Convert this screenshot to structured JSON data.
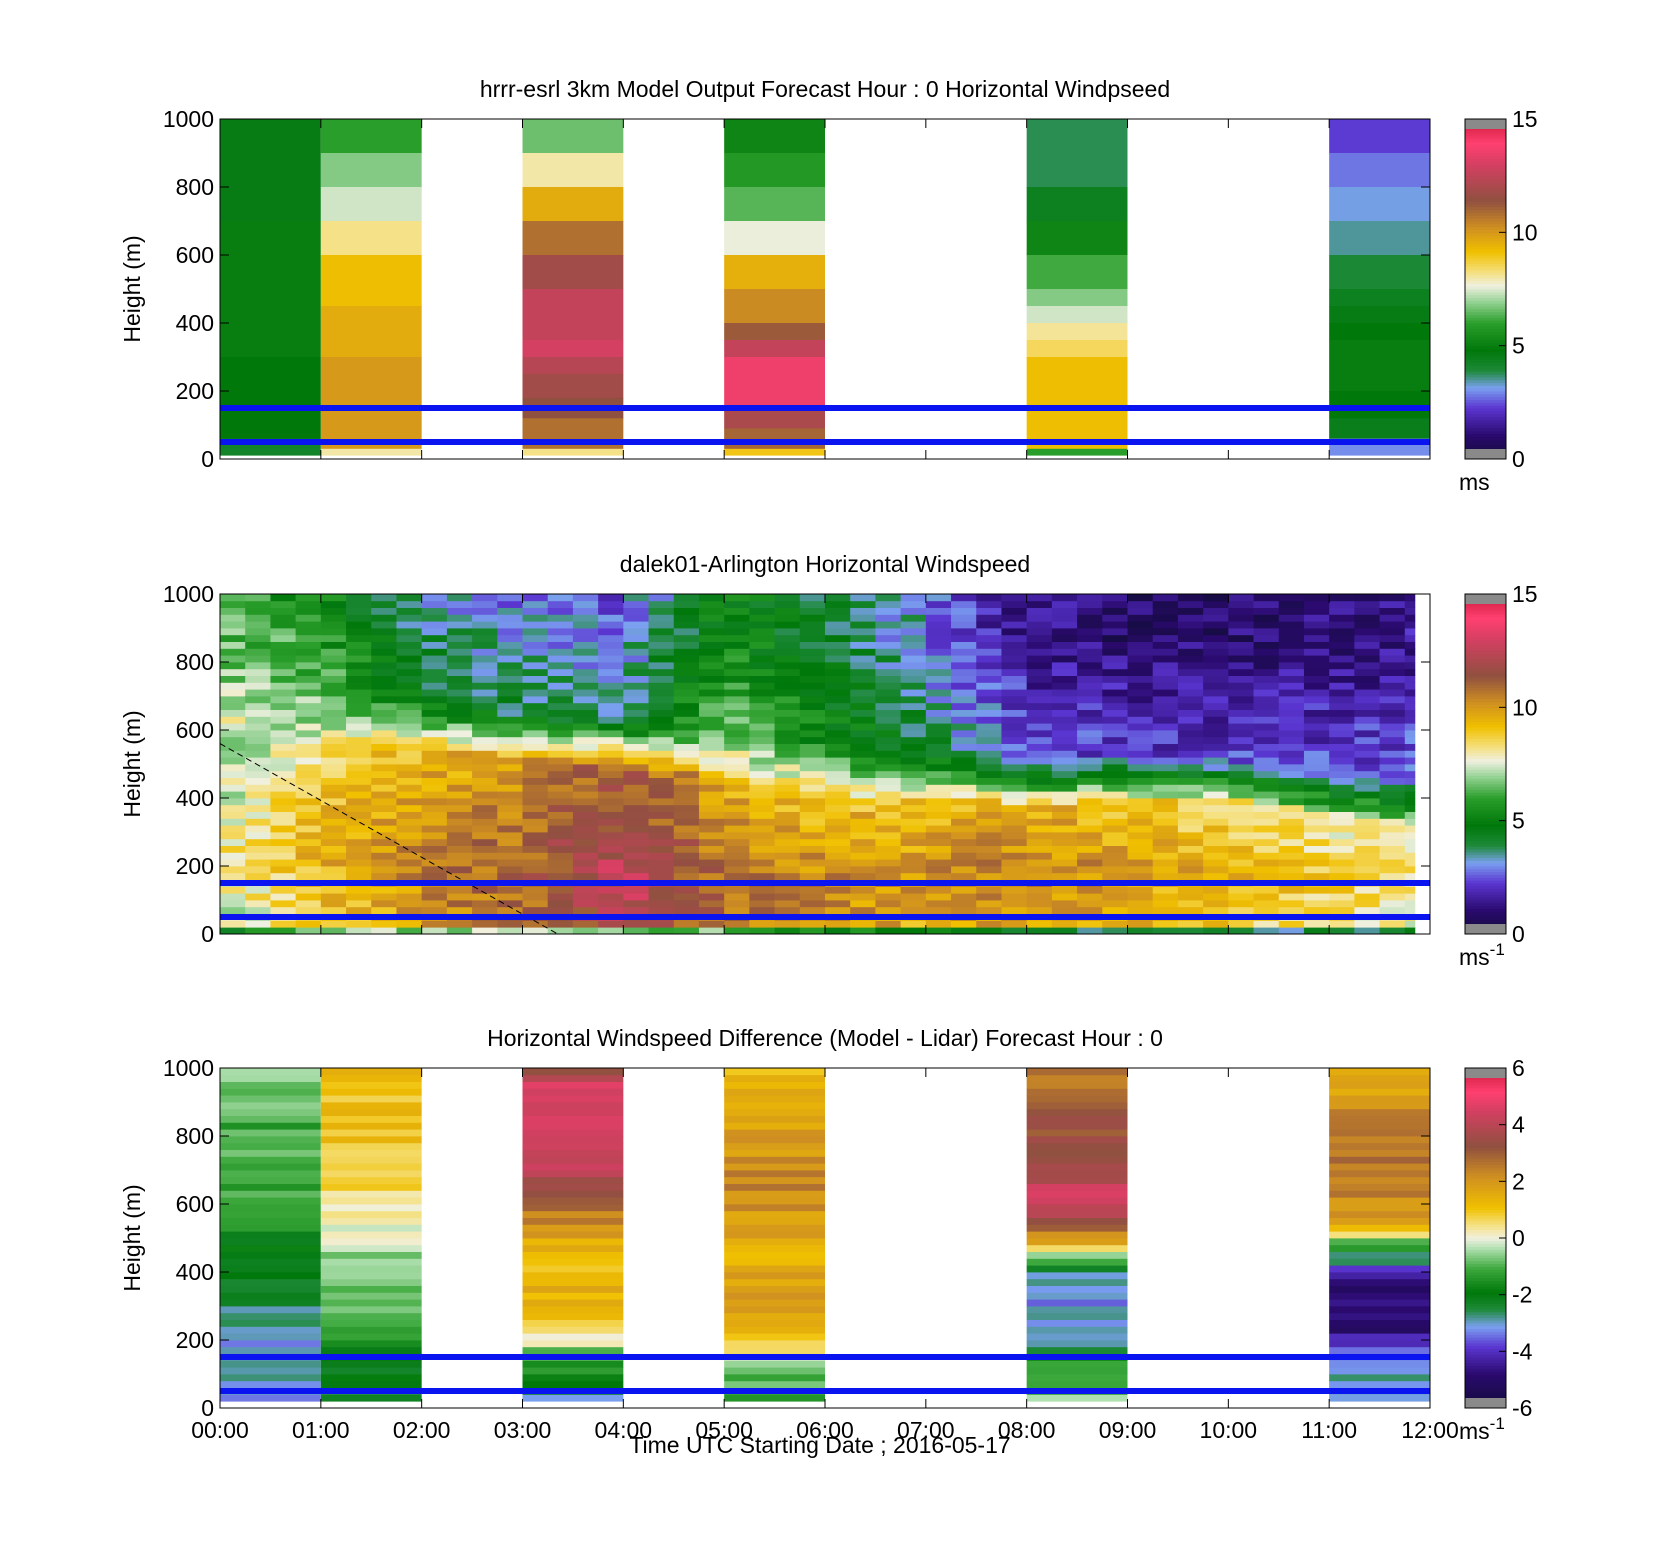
{
  "figure": {
    "x_tick_labels": [
      "00:00",
      "01:00",
      "02:00",
      "03:00",
      "04:00",
      "05:00",
      "06:00",
      "07:00",
      "08:00",
      "09:00",
      "10:00",
      "11:00",
      "12:00"
    ],
    "x_axis_label": "Time UTC  Starting Date ; 2016-05-17"
  },
  "chart_data": [
    {
      "type": "heatmap",
      "title": "hrrr-esrl 3km Model Output   Forecast Hour : 0 Horizontal Windpseed",
      "ylabel": "Height (m)",
      "ylim": [
        0,
        1000
      ],
      "y_ticks": [
        0,
        200,
        400,
        600,
        800,
        1000
      ],
      "xlim_hours": [
        0,
        12
      ],
      "colorbar": {
        "min": 0,
        "max": 15,
        "ticks": [
          0,
          5,
          10,
          15
        ],
        "unit": "ms",
        "unit_sup": ""
      },
      "reference_lines_m": [
        50,
        150
      ],
      "columns": [
        {
          "start_hour": 0,
          "end_hour": 1,
          "layers": [
            {
              "top_m": 1000,
              "value": 4.6
            },
            {
              "top_m": 700,
              "value": 5.0
            },
            {
              "top_m": 300,
              "value": 4.8
            },
            {
              "top_m": 60,
              "value": 4.2
            }
          ]
        },
        {
          "start_hour": 1,
          "end_hour": 2,
          "layers": [
            {
              "top_m": 1000,
              "value": 6.0
            },
            {
              "top_m": 900,
              "value": 6.8
            },
            {
              "top_m": 800,
              "value": 7.4
            },
            {
              "top_m": 700,
              "value": 8.2
            },
            {
              "top_m": 600,
              "value": 9.2
            },
            {
              "top_m": 450,
              "value": 9.6
            },
            {
              "top_m": 300,
              "value": 10.0
            },
            {
              "top_m": 30,
              "value": 8.0
            }
          ]
        },
        {
          "start_hour": 3,
          "end_hour": 4,
          "layers": [
            {
              "top_m": 1000,
              "value": 6.6
            },
            {
              "top_m": 900,
              "value": 8.0
            },
            {
              "top_m": 800,
              "value": 9.6
            },
            {
              "top_m": 700,
              "value": 10.8
            },
            {
              "top_m": 600,
              "value": 11.8
            },
            {
              "top_m": 500,
              "value": 12.6
            },
            {
              "top_m": 350,
              "value": 13.0
            },
            {
              "top_m": 300,
              "value": 12.3
            },
            {
              "top_m": 250,
              "value": 11.8
            },
            {
              "top_m": 180,
              "value": 11.4
            },
            {
              "top_m": 120,
              "value": 10.8
            },
            {
              "top_m": 30,
              "value": 8.2
            }
          ]
        },
        {
          "start_hour": 5,
          "end_hour": 6,
          "layers": [
            {
              "top_m": 1000,
              "value": 5.2
            },
            {
              "top_m": 900,
              "value": 5.8
            },
            {
              "top_m": 800,
              "value": 6.4
            },
            {
              "top_m": 700,
              "value": 7.6
            },
            {
              "top_m": 600,
              "value": 9.5
            },
            {
              "top_m": 500,
              "value": 10.3
            },
            {
              "top_m": 400,
              "value": 11.2
            },
            {
              "top_m": 350,
              "value": 12.6
            },
            {
              "top_m": 300,
              "value": 13.6
            },
            {
              "top_m": 150,
              "value": 12.0
            },
            {
              "top_m": 90,
              "value": 11.0
            },
            {
              "top_m": 30,
              "value": 9.0
            }
          ]
        },
        {
          "start_hour": 8,
          "end_hour": 9,
          "layers": [
            {
              "top_m": 1000,
              "value": 3.8
            },
            {
              "top_m": 800,
              "value": 4.4
            },
            {
              "top_m": 700,
              "value": 5.2
            },
            {
              "top_m": 600,
              "value": 6.2
            },
            {
              "top_m": 500,
              "value": 6.8
            },
            {
              "top_m": 450,
              "value": 7.4
            },
            {
              "top_m": 400,
              "value": 8.1
            },
            {
              "top_m": 350,
              "value": 8.5
            },
            {
              "top_m": 300,
              "value": 9.2
            },
            {
              "top_m": 30,
              "value": 6.0
            }
          ]
        },
        {
          "start_hour": 11,
          "end_hour": 12,
          "layers": [
            {
              "top_m": 1000,
              "value": 2.3
            },
            {
              "top_m": 900,
              "value": 2.8
            },
            {
              "top_m": 800,
              "value": 3.2
            },
            {
              "top_m": 700,
              "value": 3.5
            },
            {
              "top_m": 600,
              "value": 4.0
            },
            {
              "top_m": 500,
              "value": 4.4
            },
            {
              "top_m": 450,
              "value": 4.6
            },
            {
              "top_m": 400,
              "value": 4.8
            },
            {
              "top_m": 350,
              "value": 5.0
            },
            {
              "top_m": 200,
              "value": 4.8
            },
            {
              "top_m": 120,
              "value": 4.5
            },
            {
              "top_m": 60,
              "value": 3.0
            }
          ]
        }
      ]
    },
    {
      "type": "heatmap",
      "title": "dalek01-Arlington  Horizontal Windspeed",
      "ylabel": "Height (m)",
      "ylim": [
        0,
        1000
      ],
      "y_ticks": [
        0,
        200,
        400,
        600,
        800,
        1000
      ],
      "xlim_hours": [
        0,
        12
      ],
      "colorbar": {
        "min": 0,
        "max": 15,
        "ticks": [
          0,
          5,
          10,
          15
        ],
        "unit": "ms",
        "unit_sup": "-1"
      },
      "reference_lines_m": [
        50,
        150
      ],
      "data_end_hour": 11.85,
      "time_step_minutes": 15,
      "height_step_m": 20,
      "hourly_profiles": {
        "hours": [
          0,
          1,
          2,
          3,
          4,
          5,
          6,
          7,
          8,
          9,
          10,
          11,
          11.75
        ],
        "jet_top_m": [
          560,
          650,
          620,
          580,
          560,
          520,
          470,
          470,
          440,
          460,
          460,
          420,
          400
        ],
        "jet_speed": [
          8.0,
          9.5,
          10.5,
          11.2,
          12.8,
          11.0,
          10.4,
          10.2,
          10.6,
          10.0,
          9.4,
          8.8,
          8.4
        ],
        "jet_core_m": [
          250,
          230,
          210,
          170,
          130,
          120,
          140,
          160,
          180,
          180,
          170,
          160,
          140
        ],
        "aloft_speed": [
          6.2,
          5.2,
          3.3,
          2.8,
          2.6,
          5.2,
          4.2,
          3.0,
          1.4,
          1.0,
          1.0,
          1.2,
          1.5
        ],
        "surface_speed": [
          6.5,
          8.8,
          9.2,
          9.4,
          9.2,
          8.6,
          7.2,
          6.5,
          5.8,
          5.6,
          5.4,
          5.3,
          5.2
        ]
      },
      "annotation_line": {
        "from": [
          0,
          560
        ],
        "to": [
          3.35,
          0
        ]
      }
    },
    {
      "type": "heatmap",
      "title": "Horizontal Windspeed Difference (Model - Lidar) Forecast Hour : 0",
      "ylabel": "Height (m)",
      "ylim": [
        0,
        1000
      ],
      "y_ticks": [
        0,
        200,
        400,
        600,
        800,
        1000
      ],
      "xlim_hours": [
        0,
        12
      ],
      "colorbar": {
        "min": -6,
        "max": 6,
        "ticks": [
          -6,
          -4,
          -2,
          0,
          2,
          4,
          6
        ],
        "unit": "ms",
        "unit_sup": "-1"
      },
      "reference_lines_m": [
        50,
        150
      ],
      "height_step_m": 20,
      "columns": [
        {
          "start_hour": 0,
          "end_hour": 1,
          "profile": [
            {
              "h": 1000,
              "v": -0.3
            },
            {
              "h": 950,
              "v": -0.8
            },
            {
              "h": 800,
              "v": -1.1
            },
            {
              "h": 600,
              "v": -1.3
            },
            {
              "h": 450,
              "v": -2.0
            },
            {
              "h": 300,
              "v": -2.6
            },
            {
              "h": 200,
              "v": -3.0
            },
            {
              "h": 100,
              "v": -3.1
            },
            {
              "h": 30,
              "v": -3.0
            }
          ]
        },
        {
          "start_hour": 1,
          "end_hour": 2,
          "profile": [
            {
              "h": 1000,
              "v": 1.2
            },
            {
              "h": 800,
              "v": 1.0
            },
            {
              "h": 650,
              "v": 0.7
            },
            {
              "h": 550,
              "v": 0.3
            },
            {
              "h": 470,
              "v": -0.3
            },
            {
              "h": 350,
              "v": -0.8
            },
            {
              "h": 200,
              "v": -1.5
            },
            {
              "h": 100,
              "v": -2.0
            },
            {
              "h": 30,
              "v": -2.4
            }
          ]
        },
        {
          "start_hour": 3,
          "end_hour": 4,
          "profile": [
            {
              "h": 1000,
              "v": 3.5
            },
            {
              "h": 960,
              "v": 4.3
            },
            {
              "h": 830,
              "v": 4.8
            },
            {
              "h": 740,
              "v": 4.2
            },
            {
              "h": 650,
              "v": 3.6
            },
            {
              "h": 560,
              "v": 2.4
            },
            {
              "h": 480,
              "v": 1.4
            },
            {
              "h": 380,
              "v": 1.3
            },
            {
              "h": 290,
              "v": 1.5
            },
            {
              "h": 240,
              "v": 1.0
            },
            {
              "h": 200,
              "v": 0.0
            },
            {
              "h": 150,
              "v": -1.0
            },
            {
              "h": 100,
              "v": -1.8
            },
            {
              "h": 30,
              "v": -2.8
            }
          ]
        },
        {
          "start_hour": 5,
          "end_hour": 6,
          "profile": [
            {
              "h": 1000,
              "v": 1.2
            },
            {
              "h": 900,
              "v": 1.5
            },
            {
              "h": 780,
              "v": 2.0
            },
            {
              "h": 640,
              "v": 2.3
            },
            {
              "h": 560,
              "v": 1.8
            },
            {
              "h": 450,
              "v": 1.5
            },
            {
              "h": 320,
              "v": 1.8
            },
            {
              "h": 220,
              "v": 1.0
            },
            {
              "h": 170,
              "v": 0.6
            },
            {
              "h": 120,
              "v": -0.5
            },
            {
              "h": 70,
              "v": -1.1
            },
            {
              "h": 30,
              "v": -1.5
            }
          ]
        },
        {
          "start_hour": 8,
          "end_hour": 9,
          "profile": [
            {
              "h": 1000,
              "v": 2.5
            },
            {
              "h": 900,
              "v": 3.1
            },
            {
              "h": 800,
              "v": 3.4
            },
            {
              "h": 700,
              "v": 3.7
            },
            {
              "h": 620,
              "v": 4.4
            },
            {
              "h": 540,
              "v": 3.6
            },
            {
              "h": 470,
              "v": 1.0
            },
            {
              "h": 440,
              "v": -1.0
            },
            {
              "h": 400,
              "v": -2.8
            },
            {
              "h": 320,
              "v": -3.1
            },
            {
              "h": 250,
              "v": -3.2
            },
            {
              "h": 180,
              "v": -2.8
            },
            {
              "h": 120,
              "v": -1.2
            },
            {
              "h": 30,
              "v": -0.8
            }
          ]
        },
        {
          "start_hour": 11,
          "end_hour": 12,
          "profile": [
            {
              "h": 1000,
              "v": 1.3
            },
            {
              "h": 900,
              "v": 2.0
            },
            {
              "h": 750,
              "v": 2.6
            },
            {
              "h": 640,
              "v": 2.3
            },
            {
              "h": 560,
              "v": 2.0
            },
            {
              "h": 520,
              "v": 1.2
            },
            {
              "h": 480,
              "v": -1.5
            },
            {
              "h": 420,
              "v": -3.2
            },
            {
              "h": 350,
              "v": -4.8
            },
            {
              "h": 250,
              "v": -5.0
            },
            {
              "h": 200,
              "v": -4.3
            },
            {
              "h": 150,
              "v": -3.2
            },
            {
              "h": 100,
              "v": -3.0
            },
            {
              "h": 30,
              "v": -3.2
            }
          ]
        }
      ]
    }
  ]
}
